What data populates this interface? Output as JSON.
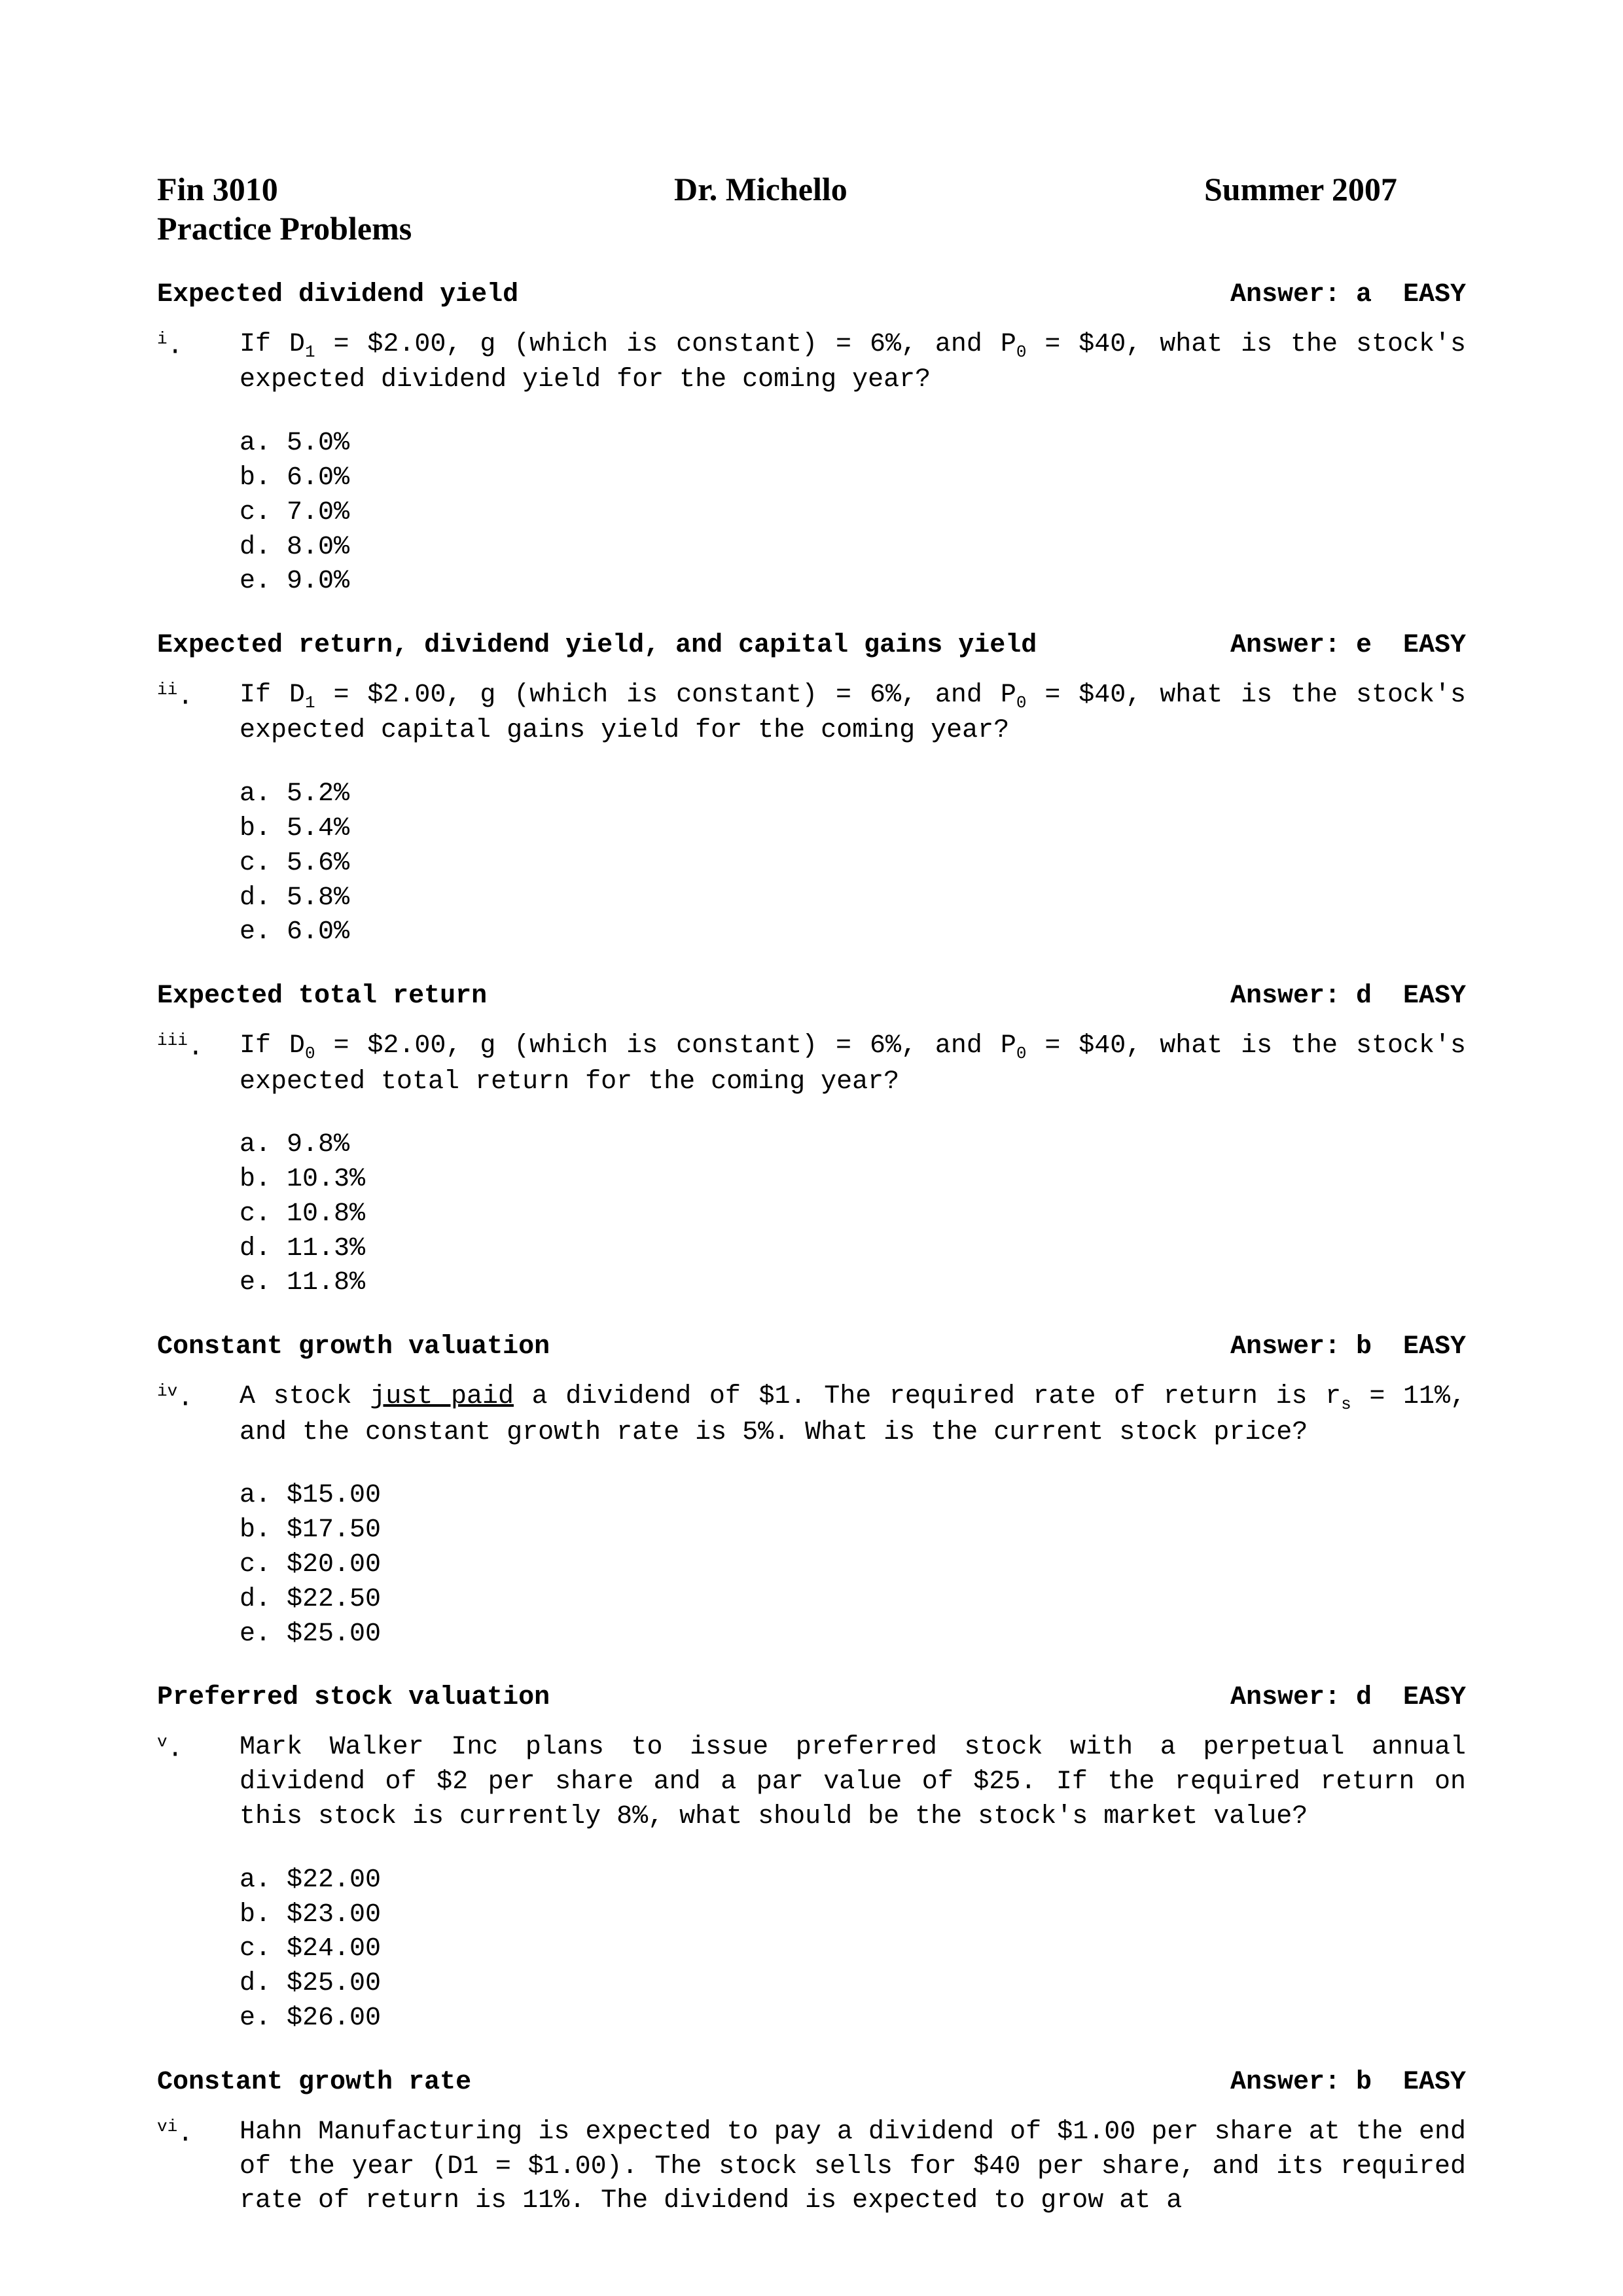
{
  "header": {
    "left": "Fin 3010",
    "center": "Dr. Michello",
    "right": "Summer 2007",
    "subtitle": "Practice Problems"
  },
  "questions": [
    {
      "topic": "Expected dividend yield",
      "answer": "Answer: a  EASY",
      "num_sup": "i",
      "num_suffix": ".",
      "body_pre": "If D",
      "body_sub1": "1",
      "body_mid1": " = $2.00, g (which is constant) = 6%, and P",
      "body_sub2": "0",
      "body_post": " = $40, what is the stock's expected dividend yield for the coming year?",
      "opts": [
        "a. 5.0%",
        "b. 6.0%",
        "c. 7.0%",
        "d. 8.0%",
        "e. 9.0%"
      ]
    },
    {
      "topic": "Expected return, dividend yield, and capital gains yield",
      "answer": "Answer: e  EASY",
      "num_sup": "ii",
      "num_suffix": ".",
      "body_pre": "If D",
      "body_sub1": "1",
      "body_mid1": " = $2.00, g (which is constant) = 6%, and P",
      "body_sub2": "0",
      "body_post": " = $40, what is the stock's expected capital gains yield for the coming year?",
      "opts": [
        "a. 5.2%",
        "b. 5.4%",
        "c. 5.6%",
        "d. 5.8%",
        "e. 6.0%"
      ]
    },
    {
      "topic": "Expected total return",
      "answer": "Answer: d  EASY",
      "num_sup": "iii",
      "num_suffix": ".",
      "body_pre": "If D",
      "body_sub1": "0",
      "body_mid1": " = $2.00, g (which is constant) = 6%, and P",
      "body_sub2": "0",
      "body_post": " = $40, what is the stock's expected total return for the coming year?",
      "opts": [
        "a. 9.8%",
        "b. 10.3%",
        "c. 10.8%",
        "d. 11.3%",
        "e. 11.8%"
      ]
    },
    {
      "topic": "Constant growth valuation",
      "answer": "Answer: b  EASY",
      "num_sup": "iv",
      "num_suffix": ".",
      "body_plain_pre": "A stock ",
      "body_underline": "just paid",
      "body_plain_mid": " a dividend of $1.  The required rate of return is r",
      "body_sub_r": "s",
      "body_plain_post": " = 11%, and the constant growth rate is 5%.  What is the current stock price?",
      "opts": [
        "a. $15.00",
        "b. $17.50",
        "c. $20.00",
        "d. $22.50",
        "e. $25.00"
      ]
    },
    {
      "topic": "Preferred stock valuation",
      "answer": "Answer: d  EASY",
      "num_sup": "v",
      "num_suffix": ".",
      "body_full": "Mark Walker Inc plans to issue preferred stock with a perpetual annual dividend of $2 per share and a par value of $25.  If the required return on this stock is currently 8%, what should be the stock's market value?",
      "opts": [
        "a. $22.00",
        "b. $23.00",
        "c. $24.00",
        "d. $25.00",
        "e. $26.00"
      ]
    },
    {
      "topic": "Constant growth rate",
      "answer": "Answer: b  EASY",
      "num_sup": "vi",
      "num_suffix": ".",
      "body_full": "Hahn Manufacturing is expected to pay a dividend of $1.00 per share at the end of the year (D1 = $1.00).  The stock sells for $40 per share, and its required rate of return is 11%.  The dividend is expected to grow at a",
      "opts": []
    }
  ]
}
